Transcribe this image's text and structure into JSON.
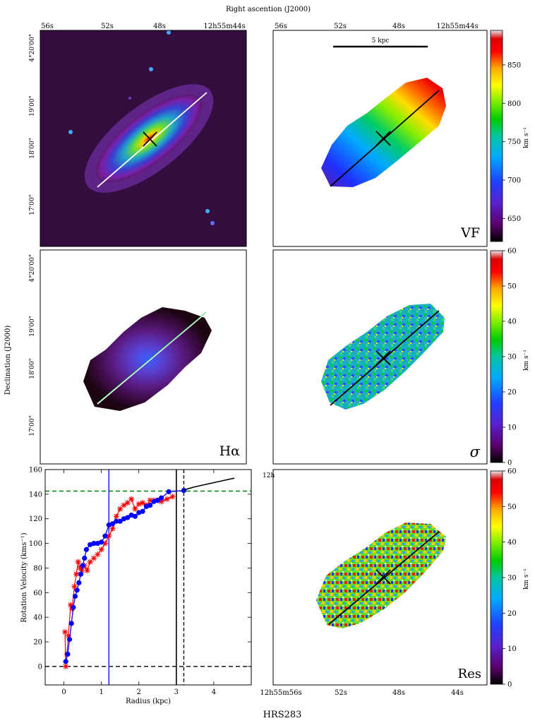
{
  "figure": {
    "top_axis_label": "Right ascention (J2000)",
    "left_axis_label": "Declination (J2000)",
    "galaxy_name": "HRS283"
  },
  "ra_ticks": [
    "56s",
    "52s",
    "48s",
    "12h55m44s"
  ],
  "ra_ticks_bottom": [
    "12h55m56s",
    "52s",
    "48s",
    "44s"
  ],
  "dec_ticks": [
    "4°20'00\"",
    "19'00\"",
    "18'00\"",
    "17'00\""
  ],
  "scale_bar_label": "5 kpc",
  "panels": {
    "vf_label": "VF",
    "halpha_label": "Hα",
    "sigma_label": "σ",
    "res_label": "Res",
    "res_corner_text": "12h"
  },
  "colorbars": {
    "unit_label": "km s⁻¹",
    "vf_ticks": [
      650,
      700,
      750,
      800,
      850
    ],
    "vf_range": [
      620,
      895
    ],
    "sigma_ticks": [
      0,
      10,
      20,
      30,
      40,
      50,
      60
    ],
    "sigma_range": [
      0,
      60
    ],
    "res_ticks": [
      0,
      10,
      20,
      30,
      40,
      50,
      60
    ],
    "res_range": [
      0,
      60
    ]
  },
  "colors": {
    "red_curve": "#ff0000",
    "blue_curve": "#0000ff",
    "green_dashed": "#008000",
    "map_background": "#2a0a33"
  },
  "chart_data": {
    "type": "line",
    "xlabel": "Radius (kpc)",
    "ylabel": "Rotation Velocity (kms⁻¹)",
    "xlim": [
      -0.5,
      5.0
    ],
    "ylim": [
      -15,
      160
    ],
    "xticks": [
      0,
      1,
      2,
      3,
      4
    ],
    "yticks": [
      0,
      20,
      40,
      60,
      80,
      100,
      120,
      140,
      160
    ],
    "series": [
      {
        "style": "red-crosses",
        "x": [
          0.03,
          0.05,
          0.08,
          0.12,
          0.18,
          0.22,
          0.28,
          0.33,
          0.38,
          0.43,
          0.48,
          0.55,
          0.62,
          0.7,
          0.8,
          0.9,
          1.0,
          1.1,
          1.2,
          1.3,
          1.4,
          1.5,
          1.6,
          1.7,
          1.8,
          1.9,
          2.0,
          2.1,
          2.2,
          2.3,
          2.4,
          2.5,
          2.6,
          2.75,
          2.9
        ],
        "y": [
          28,
          0,
          10,
          25,
          50,
          47,
          65,
          75,
          85,
          80,
          78,
          82,
          78,
          85,
          88,
          91,
          95,
          100,
          106,
          112,
          122,
          128,
          131,
          133,
          136,
          128,
          132,
          133,
          131,
          135,
          135,
          135,
          134,
          136,
          138
        ]
      },
      {
        "style": "blue-dots",
        "x": [
          0.05,
          0.1,
          0.15,
          0.2,
          0.25,
          0.3,
          0.35,
          0.4,
          0.45,
          0.5,
          0.55,
          0.6,
          0.7,
          0.8,
          0.9,
          1.0,
          1.1,
          1.2,
          1.3,
          1.4,
          1.5,
          1.6,
          1.7,
          1.8,
          1.9,
          2.0,
          2.1,
          2.2,
          2.3,
          2.4,
          2.5,
          2.6,
          2.8,
          3.2
        ],
        "y": [
          4,
          10,
          22,
          35,
          48,
          57,
          62,
          68,
          75,
          82,
          88,
          95,
          99,
          100,
          100,
          101,
          106,
          115,
          116,
          118,
          118,
          120,
          121,
          123,
          122,
          125,
          126,
          130,
          131,
          134,
          135,
          137,
          142,
          143
        ]
      },
      {
        "style": "black-solid",
        "x": [
          3.2,
          3.5,
          3.8,
          4.1,
          4.4,
          4.55
        ],
        "y": [
          143.5,
          146,
          148,
          150,
          152,
          153
        ]
      }
    ],
    "reference_lines": {
      "green_dashed_y": 142.5,
      "black_dashed_y": 0,
      "blue_vertical_x": 1.2,
      "black_solid_vertical_x": 3.0,
      "black_dashed_vertical_x": 3.2
    }
  }
}
